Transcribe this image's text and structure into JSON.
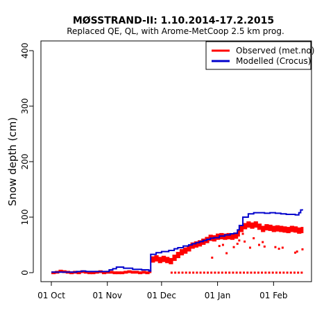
{
  "chart_data": {
    "type": "line",
    "title": "MØSSTRAND-II: 1.10.2014-17.2.2015",
    "subtitle": "Replaced QE, QL,  with Arome-MetCoop 2.5 km prog.",
    "xlabel": "",
    "ylabel": "Snow depth (cm)",
    "xlim": [
      "2014-10-01",
      "2015-02-17"
    ],
    "ylim": [
      0,
      400
    ],
    "x_ticks": [
      {
        "date": "2014-10-01",
        "label": "01 Oct"
      },
      {
        "date": "2014-11-01",
        "label": "01 Nov"
      },
      {
        "date": "2014-12-01",
        "label": "01 Dec"
      },
      {
        "date": "2015-01-01",
        "label": "01 Jan"
      },
      {
        "date": "2015-02-01",
        "label": "01 Feb"
      }
    ],
    "y_ticks": [
      0,
      100,
      200,
      300,
      400
    ],
    "grid": false,
    "legend_position": "top-right",
    "series": [
      {
        "name": "Observed (met.no)",
        "color": "#ff0000",
        "style": "points",
        "x": [
          "2014-10-01",
          "2014-10-03",
          "2014-10-05",
          "2014-10-07",
          "2014-10-09",
          "2014-10-11",
          "2014-10-13",
          "2014-10-15",
          "2014-10-17",
          "2014-10-19",
          "2014-10-21",
          "2014-10-23",
          "2014-10-25",
          "2014-10-27",
          "2014-10-29",
          "2014-10-31",
          "2014-11-02",
          "2014-11-04",
          "2014-11-06",
          "2014-11-08",
          "2014-11-10",
          "2014-11-12",
          "2014-11-14",
          "2014-11-16",
          "2014-11-18",
          "2014-11-20",
          "2014-11-22",
          "2014-11-24",
          "2014-11-25",
          "2014-11-27",
          "2014-11-29",
          "2014-12-01",
          "2014-12-03",
          "2014-12-05",
          "2014-12-07",
          "2014-12-09",
          "2014-12-11",
          "2014-12-13",
          "2014-12-15",
          "2014-12-17",
          "2014-12-19",
          "2014-12-21",
          "2014-12-23",
          "2014-12-25",
          "2014-12-27",
          "2014-12-29",
          "2014-12-31",
          "2015-01-02",
          "2015-01-04",
          "2015-01-06",
          "2015-01-08",
          "2015-01-10",
          "2015-01-12",
          "2015-01-13",
          "2015-01-15",
          "2015-01-17",
          "2015-01-19",
          "2015-01-21",
          "2015-01-23",
          "2015-01-25",
          "2015-01-27",
          "2015-01-29",
          "2015-01-31",
          "2015-02-02",
          "2015-02-04",
          "2015-02-06",
          "2015-02-08",
          "2015-02-10",
          "2015-02-12",
          "2015-02-14",
          "2015-02-16"
        ],
        "y": [
          1,
          2,
          4,
          3,
          2,
          1,
          2,
          1,
          3,
          2,
          1,
          1,
          2,
          3,
          1,
          2,
          2,
          1,
          1,
          1,
          2,
          3,
          2,
          2,
          1,
          2,
          1,
          3,
          25,
          27,
          24,
          26,
          24,
          22,
          28,
          33,
          38,
          41,
          45,
          50,
          52,
          54,
          57,
          60,
          64,
          63,
          66,
          67,
          66,
          67,
          66,
          68,
          72,
          80,
          85,
          88,
          86,
          88,
          84,
          80,
          83,
          82,
          80,
          81,
          80,
          79,
          78,
          80,
          79,
          77,
          78
        ]
      },
      {
        "name": "Modelled (Crocus)",
        "color": "#0000cc",
        "style": "step",
        "x": [
          "2014-10-01",
          "2014-10-05",
          "2014-10-10",
          "2014-10-15",
          "2014-10-18",
          "2014-10-20",
          "2014-10-25",
          "2014-10-30",
          "2014-11-02",
          "2014-11-04",
          "2014-11-06",
          "2014-11-10",
          "2014-11-15",
          "2014-11-20",
          "2014-11-24",
          "2014-11-25",
          "2014-11-28",
          "2014-12-01",
          "2014-12-05",
          "2014-12-08",
          "2014-12-10",
          "2014-12-13",
          "2014-12-16",
          "2014-12-18",
          "2014-12-20",
          "2014-12-22",
          "2014-12-24",
          "2014-12-26",
          "2014-12-28",
          "2014-12-30",
          "2015-01-02",
          "2015-01-05",
          "2015-01-08",
          "2015-01-10",
          "2015-01-12",
          "2015-01-13",
          "2015-01-15",
          "2015-01-18",
          "2015-01-21",
          "2015-01-24",
          "2015-01-27",
          "2015-01-30",
          "2015-02-02",
          "2015-02-05",
          "2015-02-08",
          "2015-02-11",
          "2015-02-13",
          "2015-02-14",
          "2015-02-15",
          "2015-02-16",
          "2015-02-17"
        ],
        "y": [
          1,
          1,
          1,
          2,
          3,
          2,
          2,
          2,
          5,
          7,
          10,
          8,
          6,
          5,
          3,
          33,
          36,
          38,
          40,
          43,
          45,
          48,
          50,
          52,
          54,
          56,
          58,
          60,
          62,
          63,
          66,
          68,
          70,
          71,
          77,
          85,
          100,
          106,
          108,
          108,
          107,
          108,
          107,
          106,
          105,
          105,
          104,
          104,
          108,
          113,
          112
        ]
      }
    ],
    "observed_zero_band": {
      "color": "#ff0000",
      "from": "2014-12-06",
      "to": "2015-02-17",
      "y": 0
    },
    "observed_outliers": {
      "color": "#ff0000",
      "points": [
        {
          "x": "2014-12-29",
          "y": 27
        },
        {
          "x": "2015-01-02",
          "y": 48
        },
        {
          "x": "2015-01-04",
          "y": 50
        },
        {
          "x": "2015-01-06",
          "y": 35
        },
        {
          "x": "2015-01-10",
          "y": 46
        },
        {
          "x": "2015-01-12",
          "y": 52
        },
        {
          "x": "2015-01-13",
          "y": 58
        },
        {
          "x": "2015-01-15",
          "y": 70
        },
        {
          "x": "2015-01-16",
          "y": 56
        },
        {
          "x": "2015-01-19",
          "y": 45
        },
        {
          "x": "2015-01-21",
          "y": 62
        },
        {
          "x": "2015-01-24",
          "y": 50
        },
        {
          "x": "2015-01-26",
          "y": 55
        },
        {
          "x": "2015-01-27",
          "y": 47
        },
        {
          "x": "2015-02-02",
          "y": 46
        },
        {
          "x": "2015-02-04",
          "y": 43
        },
        {
          "x": "2015-02-06",
          "y": 45
        },
        {
          "x": "2015-02-13",
          "y": 36
        },
        {
          "x": "2015-02-14",
          "y": 38
        },
        {
          "x": "2015-02-17",
          "y": 42
        }
      ]
    }
  }
}
